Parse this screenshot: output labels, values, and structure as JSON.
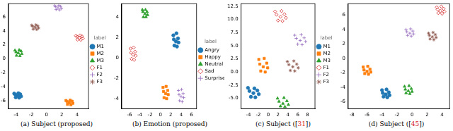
{
  "chart_data": [
    {
      "type": "scatter",
      "title": "(a) Subject (proposed)",
      "legend": "right",
      "legend_title": "label",
      "grid": false,
      "xlim": [
        -5,
        5.5
      ],
      "xticks": [
        -4,
        -2,
        0,
        2,
        4
      ],
      "ylim": [
        -7.2,
        7.9
      ],
      "yticks": [
        -6,
        -4,
        -2,
        0,
        2,
        4,
        6
      ],
      "series": [
        {
          "name": "M1",
          "color": "#1f77b4",
          "marker": "circle",
          "values": [
            [
              -3.8,
              -5.3
            ],
            [
              -3.45,
              -5.1
            ],
            [
              -4.1,
              -5.15
            ],
            [
              -3.6,
              -5.6
            ],
            [
              -4.05,
              -5.55
            ],
            [
              -3.35,
              -5.4
            ],
            [
              -4.25,
              -5.0
            ],
            [
              -3.7,
              -4.95
            ]
          ]
        },
        {
          "name": "M2",
          "color": "#ff7f0e",
          "marker": "square",
          "values": [
            [
              3,
              -6.3
            ],
            [
              3.35,
              -6.1
            ],
            [
              2.7,
              -6.15
            ],
            [
              3.2,
              -6.6
            ],
            [
              2.75,
              -6.55
            ],
            [
              3.45,
              -6.4
            ],
            [
              2.55,
              -6.0
            ],
            [
              3.1,
              -5.95
            ]
          ]
        },
        {
          "name": "M3",
          "color": "#2ca02c",
          "marker": "triangle",
          "values": [
            [
              -3.7,
              0.8
            ],
            [
              -3.35,
              1.1
            ],
            [
              -4.0,
              0.95
            ],
            [
              -3.5,
              0.4
            ],
            [
              -3.95,
              0.45
            ],
            [
              -3.25,
              0.7
            ],
            [
              -4.15,
              1.2
            ],
            [
              -3.6,
              1.25
            ]
          ]
        },
        {
          "name": "F1",
          "color": "#d62728",
          "marker": "diamond",
          "values": [
            [
              4.3,
              3
            ],
            [
              4.65,
              3.2
            ],
            [
              4.0,
              3.15
            ],
            [
              4.5,
              2.7
            ],
            [
              4.05,
              2.75
            ],
            [
              4.75,
              2.9
            ],
            [
              3.85,
              3.3
            ],
            [
              4.4,
              3.35
            ]
          ]
        },
        {
          "name": "F2",
          "color": "#9467bd",
          "marker": "cross",
          "values": [
            [
              1.5,
              7.3
            ],
            [
              1.85,
              7.5
            ],
            [
              1.2,
              7.45
            ],
            [
              1.7,
              7.0
            ],
            [
              1.25,
              7.05
            ],
            [
              1.95,
              7.2
            ],
            [
              1.05,
              7.6
            ],
            [
              1.6,
              7.65
            ]
          ]
        },
        {
          "name": "F3",
          "color": "#8c564b",
          "marker": "star",
          "values": [
            [
              -1.5,
              4.5
            ],
            [
              -1.15,
              4.7
            ],
            [
              -1.8,
              4.65
            ],
            [
              -1.3,
              4.2
            ],
            [
              -1.75,
              4.25
            ],
            [
              -1.05,
              4.4
            ],
            [
              -1.95,
              4.8
            ],
            [
              -1.4,
              4.85
            ]
          ]
        }
      ]
    },
    {
      "type": "scatter",
      "title": "(b) Emotion (proposed)",
      "legend": "right",
      "legend_title": "label",
      "grid": false,
      "xlim": [
        -7.5,
        7
      ],
      "xticks": [
        -6,
        -4,
        -2,
        0,
        2,
        4,
        6
      ],
      "ylim": [
        -5,
        5.3
      ],
      "yticks": [
        -4,
        -2,
        0,
        2,
        4
      ],
      "series": [
        {
          "name": "Angry",
          "color": "#1f77b4",
          "marker": "circle",
          "values": [
            [
              3,
              1.6
            ],
            [
              3.4,
              1.9
            ],
            [
              2.6,
              1.8
            ],
            [
              3.2,
              1.1
            ],
            [
              2.7,
              1.2
            ],
            [
              3.5,
              1.5
            ],
            [
              2.5,
              2.2
            ],
            [
              3.1,
              2.4
            ]
          ]
        },
        {
          "name": "Happy",
          "color": "#ff7f0e",
          "marker": "square",
          "values": [
            [
              1,
              -3.5
            ],
            [
              1.4,
              -3.2
            ],
            [
              0.6,
              -3.3
            ],
            [
              1.2,
              -4.0
            ],
            [
              0.7,
              -3.9
            ],
            [
              1.5,
              -3.6
            ],
            [
              0.5,
              -2.9
            ],
            [
              1.1,
              -2.8
            ]
          ]
        },
        {
          "name": "Neutral",
          "color": "#2ca02c",
          "marker": "triangle",
          "values": [
            [
              -3,
              4.3
            ],
            [
              -2.6,
              4.5
            ],
            [
              -3.4,
              4.5
            ],
            [
              -2.8,
              4.0
            ],
            [
              -3.3,
              4.0
            ],
            [
              -2.5,
              4.2
            ],
            [
              -3.5,
              4.7
            ],
            [
              -2.9,
              4.7
            ]
          ]
        },
        {
          "name": "Sad",
          "color": "#d62728",
          "marker": "diamond",
          "values": [
            [
              -5.3,
              0.3
            ],
            [
              -4.9,
              0.6
            ],
            [
              -5.7,
              0.5
            ],
            [
              -5.1,
              -0.2
            ],
            [
              -5.6,
              -0.1
            ],
            [
              -4.8,
              0.2
            ],
            [
              -5.8,
              0.9
            ],
            [
              -5.2,
              1.0
            ]
          ]
        },
        {
          "name": "Surprise",
          "color": "#9467bd",
          "marker": "cross",
          "values": [
            [
              4,
              -3.8
            ],
            [
              4.4,
              -3.5
            ],
            [
              3.6,
              -3.6
            ],
            [
              4.2,
              -4.3
            ],
            [
              3.7,
              -4.2
            ],
            [
              4.5,
              -3.9
            ],
            [
              3.5,
              -3.2
            ],
            [
              4.1,
              -3.1
            ]
          ]
        }
      ]
    },
    {
      "type": "scatter",
      "title": "(c) Subject ([31])",
      "legend": "right",
      "legend_title": "label",
      "grid": false,
      "xlim": [
        -5.5,
        9.5
      ],
      "xticks": [
        -4,
        -2,
        0,
        2,
        4,
        6,
        8
      ],
      "ylim": [
        -7,
        13
      ],
      "yticks": [
        {
          "value": -5,
          "label": "-5.0"
        },
        -2.5,
        {
          "value": 0,
          "label": "0.0"
        },
        2.5,
        {
          "value": 5,
          "label": "5.0"
        },
        7.5,
        {
          "value": 10,
          "label": "10.0"
        },
        12.5
      ],
      "series": [
        {
          "name": "M1",
          "color": "#1f77b4",
          "marker": "circle",
          "values": [
            [
              -3,
              -4
            ],
            [
              -2.2,
              -3.5
            ],
            [
              -3.8,
              -3.6
            ],
            [
              -2.6,
              -4.8
            ],
            [
              -3.5,
              -4.7
            ],
            [
              -1.9,
              -4.2
            ],
            [
              -4.1,
              -3.0
            ],
            [
              -2.8,
              -3.1
            ]
          ]
        },
        {
          "name": "M2",
          "color": "#ff7f0e",
          "marker": "square",
          "values": [
            [
              -1,
              1
            ],
            [
              -0.3,
              1.7
            ],
            [
              -1.7,
              1.5
            ],
            [
              -0.6,
              0.0
            ],
            [
              -1.5,
              0.2
            ],
            [
              -0.1,
              0.8
            ],
            [
              -1.9,
              2.4
            ],
            [
              -0.8,
              2.6
            ]
          ]
        },
        {
          "name": "M3",
          "color": "#2ca02c",
          "marker": "triangle",
          "values": [
            [
              3,
              -6
            ],
            [
              3.8,
              -5.5
            ],
            [
              2.2,
              -5.6
            ],
            [
              3.4,
              -6.6
            ],
            [
              2.5,
              -6.5
            ],
            [
              4.1,
              -6.2
            ],
            [
              1.9,
              -5.0
            ],
            [
              3.2,
              -4.9
            ]
          ]
        },
        {
          "name": "F1",
          "color": "#d62728",
          "marker": "diamond",
          "values": [
            [
              2.5,
              10.5
            ],
            [
              3.3,
              11.0
            ],
            [
              1.7,
              10.9
            ],
            [
              2.9,
              9.7
            ],
            [
              2.0,
              9.8
            ],
            [
              3.6,
              10.3
            ],
            [
              1.4,
              11.5
            ],
            [
              2.7,
              11.6
            ]
          ]
        },
        {
          "name": "F2",
          "color": "#9467bd",
          "marker": "cross",
          "values": [
            [
              6.5,
              6
            ],
            [
              7.3,
              6.5
            ],
            [
              5.7,
              6.4
            ],
            [
              6.9,
              5.2
            ],
            [
              6.0,
              5.3
            ],
            [
              7.6,
              5.8
            ],
            [
              5.4,
              7.0
            ],
            [
              6.7,
              7.1
            ]
          ]
        },
        {
          "name": "F3",
          "color": "#8c564b",
          "marker": "star",
          "values": [
            [
              5,
              1
            ],
            [
              5.8,
              1.5
            ],
            [
              4.2,
              1.4
            ],
            [
              5.4,
              0.2
            ],
            [
              4.5,
              0.3
            ],
            [
              6.1,
              0.8
            ],
            [
              3.9,
              2.0
            ],
            [
              5.2,
              2.1
            ]
          ]
        }
      ]
    },
    {
      "type": "scatter",
      "title": "(d) Subject ([45])",
      "grid": false,
      "xlim": [
        -8.5,
        5
      ],
      "xticks": [
        -8,
        -6,
        -4,
        -2,
        0,
        2,
        4
      ],
      "ylim": [
        -7,
        7.6
      ],
      "yticks": [
        -6,
        -4,
        -2,
        0,
        2,
        4,
        6
      ],
      "series": [
        {
          "color": "#1f77b4",
          "marker": "circle",
          "values": [
            [
              -3.5,
              -5
            ],
            [
              -3.1,
              -4.7
            ],
            [
              -3.9,
              -4.8
            ],
            [
              -3.3,
              -5.4
            ],
            [
              -3.8,
              -5.3
            ],
            [
              -3.0,
              -5.1
            ],
            [
              -4.0,
              -4.4
            ],
            [
              -3.4,
              -4.3
            ]
          ]
        },
        {
          "color": "#ff7f0e",
          "marker": "square",
          "values": [
            [
              -6,
              -1.8
            ],
            [
              -5.6,
              -1.5
            ],
            [
              -6.4,
              -1.6
            ],
            [
              -5.8,
              -2.2
            ],
            [
              -6.3,
              -2.1
            ],
            [
              -5.5,
              -1.9
            ],
            [
              -6.5,
              -1.2
            ],
            [
              -5.9,
              -1.1
            ]
          ]
        },
        {
          "color": "#2ca02c",
          "marker": "triangle",
          "values": [
            [
              -0.5,
              -4.5
            ],
            [
              -0.1,
              -4.2
            ],
            [
              -0.9,
              -4.3
            ],
            [
              -0.3,
              -4.9
            ],
            [
              -0.8,
              -4.8
            ],
            [
              0,
              -4.6
            ],
            [
              -1.0,
              -3.9
            ],
            [
              -0.4,
              -3.8
            ]
          ]
        },
        {
          "color": "#d62728",
          "marker": "diamond",
          "values": [
            [
              3.8,
              6.6
            ],
            [
              4.2,
              6.9
            ],
            [
              3.4,
              6.8
            ],
            [
              4.0,
              6.2
            ],
            [
              3.5,
              6.3
            ],
            [
              4.3,
              6.5
            ],
            [
              3.3,
              7.1
            ],
            [
              3.9,
              7.2
            ]
          ]
        },
        {
          "color": "#9467bd",
          "marker": "cross",
          "values": [
            [
              -0.3,
              3.5
            ],
            [
              0.1,
              3.8
            ],
            [
              -0.7,
              3.7
            ],
            [
              -0.1,
              3.1
            ],
            [
              -0.6,
              3.2
            ],
            [
              0.2,
              3.4
            ],
            [
              -0.8,
              4.0
            ],
            [
              -0.2,
              4.1
            ]
          ]
        },
        {
          "color": "#8c564b",
          "marker": "star",
          "values": [
            [
              2.7,
              3
            ],
            [
              3.1,
              3.3
            ],
            [
              2.3,
              3.2
            ],
            [
              2.9,
              2.6
            ],
            [
              2.4,
              2.7
            ],
            [
              3.2,
              2.9
            ],
            [
              2.2,
              3.5
            ],
            [
              2.8,
              3.6
            ]
          ]
        }
      ]
    }
  ]
}
